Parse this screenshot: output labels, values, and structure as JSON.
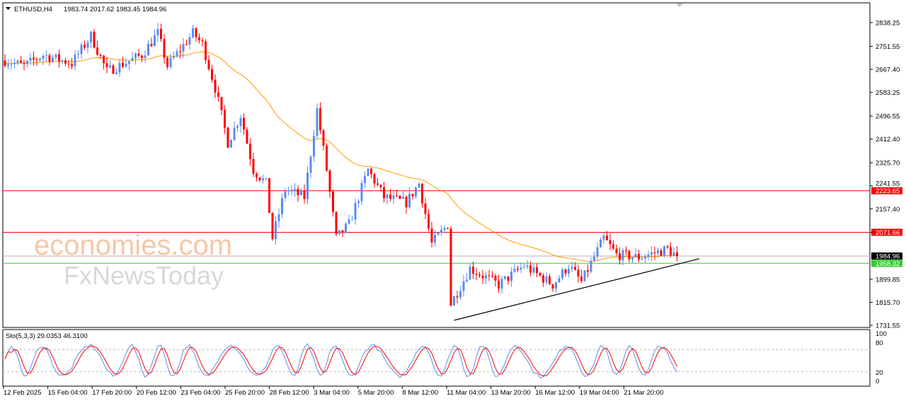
{
  "header": {
    "symbol": "ETHUSD,H4",
    "ohlc": "1983.74 2017.62 1983.45 1984.96"
  },
  "indicator": {
    "label": "Sto(5,3,3) 29.0353 46.3100",
    "levels": [
      "100",
      "80",
      "20",
      "0"
    ]
  },
  "watermark": {
    "line1": "economies.com",
    "line2": "FxNewsToday"
  },
  "chart_data": {
    "type": "candlestick",
    "title": "ETHUSD,H4",
    "ylim": [
      1731.55,
      2880
    ],
    "y_ticks": [
      "2838.25",
      "2751.55",
      "2667.40",
      "2583.25",
      "2496.55",
      "2412.40",
      "2325.70",
      "2241.55",
      "2157.40",
      "2071.66",
      "1899.85",
      "1815.70",
      "1731.55"
    ],
    "x_ticks": [
      "12 Feb 2025",
      "15 Feb 04:00",
      "17 Feb 20:00",
      "20 Feb 12:00",
      "23 Feb 04:00",
      "25 Feb 20:00",
      "28 Feb 12:00",
      "3 Mar 04:00",
      "5 Mar 20:00",
      "8 Mar 12:00",
      "11 Mar 04:00",
      "13 Mar 20:00",
      "16 Mar 12:00",
      "19 Mar 04:00",
      "21 Mar 20:00"
    ],
    "close_anchors": [
      [
        0,
        2700
      ],
      [
        6,
        2680
      ],
      [
        12,
        2720
      ],
      [
        21,
        2690
      ],
      [
        27,
        2790
      ],
      [
        32,
        2660
      ],
      [
        43,
        2720
      ],
      [
        48,
        2800
      ],
      [
        51,
        2680
      ],
      [
        59,
        2800
      ],
      [
        62,
        2760
      ],
      [
        66,
        2600
      ],
      [
        70,
        2400
      ],
      [
        74,
        2500
      ],
      [
        78,
        2300
      ],
      [
        82,
        2250
      ],
      [
        84,
        2050
      ],
      [
        88,
        2230
      ],
      [
        94,
        2200
      ],
      [
        98,
        2520
      ],
      [
        101,
        2300
      ],
      [
        104,
        2050
      ],
      [
        108,
        2100
      ],
      [
        114,
        2300
      ],
      [
        119,
        2200
      ],
      [
        126,
        2180
      ],
      [
        130,
        2250
      ],
      [
        134,
        2030
      ],
      [
        139,
        2100
      ],
      [
        140,
        1810
      ],
      [
        146,
        1940
      ],
      [
        155,
        1880
      ],
      [
        163,
        1950
      ],
      [
        172,
        1880
      ],
      [
        177,
        1950
      ],
      [
        181,
        1890
      ],
      [
        188,
        2050
      ],
      [
        192,
        1990
      ],
      [
        199,
        1980
      ],
      [
        208,
        2010
      ],
      [
        211,
        1985
      ]
    ],
    "levels": [
      {
        "value": "2223.65",
        "color": "#ff0000"
      },
      {
        "value": "2071.66",
        "color": "#ff0000"
      },
      {
        "value": "1984.96",
        "color": "#000000"
      },
      {
        "value": "1958.32",
        "color": "#33cc33"
      }
    ],
    "trendline": [
      [
        141,
        1750
      ],
      [
        218,
        1975
      ]
    ],
    "colors": {
      "up": "#5b8def",
      "down": "#ff0000",
      "ma": "#ff9900"
    }
  }
}
